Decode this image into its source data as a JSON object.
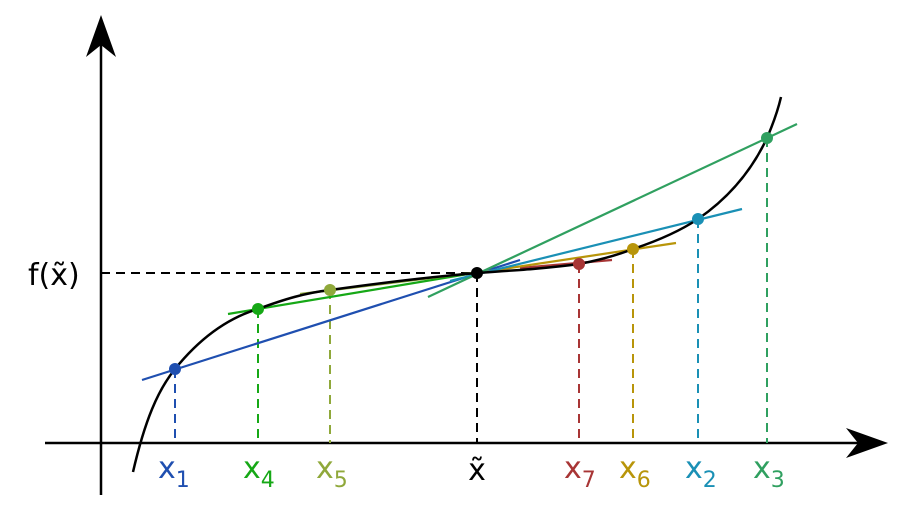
{
  "y_label": {
    "text": "f(x̃)"
  },
  "root_label": {
    "text": "x̃",
    "color": "#000000"
  },
  "iterates": [
    {
      "base": "x",
      "sub": "1",
      "color": "#1f4fb0"
    },
    {
      "base": "x",
      "sub": "4",
      "color": "#16a816"
    },
    {
      "base": "x",
      "sub": "5",
      "color": "#8fa83a"
    },
    {
      "base": "x",
      "sub": "7",
      "color": "#a83535"
    },
    {
      "base": "x",
      "sub": "6",
      "color": "#b8950a"
    },
    {
      "base": "x",
      "sub": "2",
      "color": "#1a90b5"
    },
    {
      "base": "x",
      "sub": "3",
      "color": "#30a060"
    }
  ]
}
